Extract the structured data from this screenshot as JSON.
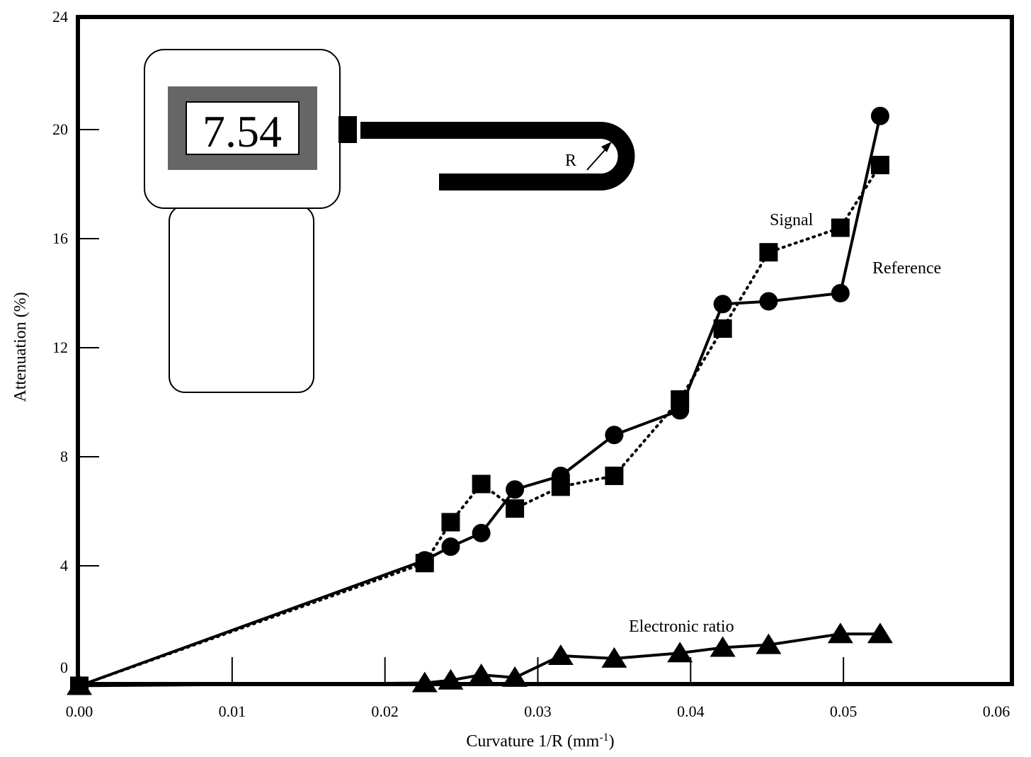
{
  "chart_data": {
    "type": "line",
    "title": "",
    "xlabel": "Curvature 1/R (mm",
    "xlabel_sup": "-1",
    "xlabel_close": ")",
    "ylabel": "Attenuation (%)",
    "xlim": [
      0,
      0.06
    ],
    "ylim": [
      0,
      24
    ],
    "grid": false,
    "x_ticks": [
      {
        "value": 0.0,
        "label": "0.00"
      },
      {
        "value": 0.01,
        "label": "0.01"
      },
      {
        "value": 0.02,
        "label": "0.02"
      },
      {
        "value": 0.03,
        "label": "0.03"
      },
      {
        "value": 0.04,
        "label": "0.04"
      },
      {
        "value": 0.05,
        "label": "0.05"
      },
      {
        "value": 0.06,
        "label": "0.06"
      }
    ],
    "y_ticks": [
      {
        "value": 0,
        "label": "0"
      },
      {
        "value": 4,
        "label": "4"
      },
      {
        "value": 8,
        "label": "8"
      },
      {
        "value": 12,
        "label": "12"
      },
      {
        "value": 16,
        "label": "16"
      },
      {
        "value": 20,
        "label": "20"
      },
      {
        "value": 24,
        "label": "24"
      }
    ],
    "series": [
      {
        "name": "Reference",
        "marker": "circle",
        "line": "solid",
        "x": [
          0.0,
          0.0226,
          0.0243,
          0.0263,
          0.0285,
          0.0315,
          0.035,
          0.0393,
          0.0421,
          0.0451,
          0.0498,
          0.0524
        ],
        "y": [
          -0.4,
          4.2,
          4.7,
          5.2,
          6.8,
          7.3,
          8.8,
          9.7,
          13.6,
          13.7,
          14.0,
          20.5
        ]
      },
      {
        "name": "Signal",
        "marker": "square",
        "line": "dotted",
        "x": [
          0.0,
          0.0226,
          0.0243,
          0.0263,
          0.0285,
          0.0315,
          0.035,
          0.0393,
          0.0421,
          0.0451,
          0.0498,
          0.0524
        ],
        "y": [
          -0.4,
          4.1,
          5.6,
          7.0,
          6.1,
          6.9,
          7.3,
          10.1,
          12.7,
          15.5,
          16.4,
          18.7
        ]
      },
      {
        "name": "Electronic ratio",
        "marker": "triangle",
        "line": "solid",
        "x": [
          0.0,
          0.0226,
          0.0243,
          0.0263,
          0.0285,
          0.0315,
          0.035,
          0.0393,
          0.0421,
          0.0451,
          0.0498,
          0.0524
        ],
        "y": [
          -0.4,
          -0.3,
          -0.2,
          0.0,
          -0.1,
          0.7,
          0.6,
          0.8,
          1.0,
          1.1,
          1.5,
          1.5
        ]
      }
    ]
  },
  "inset": {
    "display_value": "7.54",
    "radius_label": "R"
  }
}
